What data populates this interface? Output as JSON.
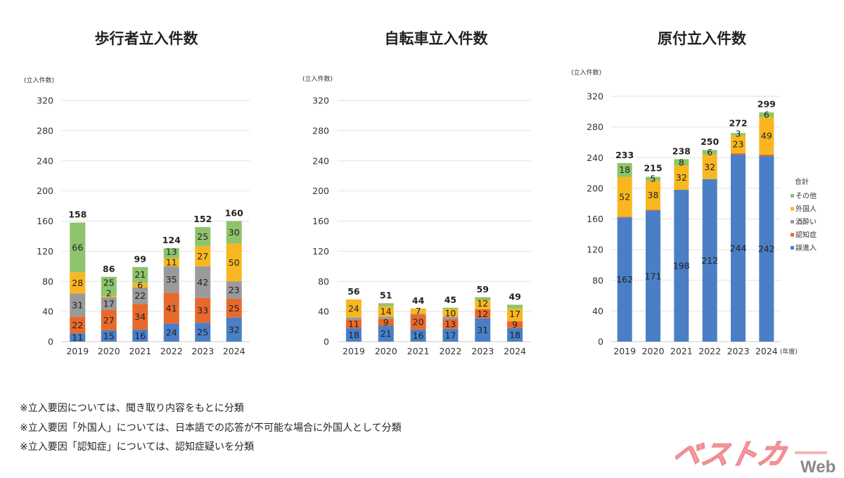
{
  "colors": {
    "誤進入": "#4a7fc6",
    "認知症": "#e8692c",
    "酒酔い": "#9a9a9a",
    "外国人": "#f8b720",
    "その他": "#8dc46c"
  },
  "chart_data": [
    {
      "type": "bar",
      "stacked": true,
      "title": "歩行者立入件数",
      "ylabel": "(立入件数)",
      "ylim": [
        0,
        320
      ],
      "yticks": [
        0,
        40,
        80,
        120,
        160,
        200,
        240,
        280,
        320
      ],
      "grid": true,
      "categories": [
        "2019",
        "2020",
        "2021",
        "2022",
        "2023",
        "2024"
      ],
      "x_suffix": "",
      "totals": [
        158,
        86,
        99,
        124,
        152,
        160
      ],
      "series": [
        {
          "name": "誤進入",
          "values": [
            11,
            15,
            16,
            24,
            25,
            32
          ],
          "labels": [
            11,
            15,
            16,
            24,
            25,
            32
          ]
        },
        {
          "name": "認知症",
          "values": [
            22,
            27,
            34,
            41,
            33,
            25
          ],
          "labels": [
            22,
            27,
            34,
            41,
            33,
            25
          ]
        },
        {
          "name": "酒酔い",
          "values": [
            31,
            17,
            22,
            35,
            42,
            23
          ],
          "labels": [
            31,
            17,
            22,
            35,
            42,
            23
          ]
        },
        {
          "name": "外国人",
          "values": [
            28,
            2,
            6,
            11,
            27,
            50
          ],
          "labels": [
            28,
            2,
            6,
            11,
            27,
            50
          ]
        },
        {
          "name": "その他",
          "values": [
            66,
            25,
            21,
            13,
            25,
            30
          ],
          "labels": [
            66,
            25,
            21,
            13,
            25,
            30
          ]
        }
      ]
    },
    {
      "type": "bar",
      "stacked": true,
      "title": "自転車立入件数",
      "ylabel": "(立入件数)",
      "ylim": [
        0,
        320
      ],
      "yticks": [
        0,
        40,
        80,
        120,
        160,
        200,
        240,
        280,
        320
      ],
      "grid": true,
      "categories": [
        "2019",
        "2020",
        "2021",
        "2022",
        "2023",
        "2024"
      ],
      "x_suffix": "",
      "totals": [
        56,
        51,
        44,
        45,
        59,
        49
      ],
      "series": [
        {
          "name": "誤進入",
          "values": [
            18,
            21,
            16,
            17,
            31,
            18
          ],
          "labels": [
            18,
            21,
            16,
            17,
            31,
            18
          ]
        },
        {
          "name": "認知症",
          "values": [
            11,
            9,
            20,
            13,
            12,
            9
          ],
          "labels": [
            11,
            9,
            20,
            13,
            12,
            9
          ]
        },
        {
          "name": "酒酔い",
          "values": [
            3,
            3,
            1,
            3,
            0,
            0
          ],
          "labels": [
            null,
            null,
            null,
            null,
            null,
            null
          ]
        },
        {
          "name": "外国人",
          "values": [
            24,
            14,
            7,
            10,
            12,
            17
          ],
          "labels": [
            24,
            14,
            7,
            10,
            12,
            17
          ]
        },
        {
          "name": "その他",
          "values": [
            0,
            4,
            0,
            2,
            4,
            5
          ],
          "labels": [
            null,
            null,
            null,
            null,
            null,
            null
          ]
        }
      ]
    },
    {
      "type": "bar",
      "stacked": true,
      "title": "原付立入件数",
      "ylabel": "(立入件数)",
      "ylim": [
        0,
        320
      ],
      "yticks": [
        0,
        40,
        80,
        120,
        160,
        200,
        240,
        280,
        320
      ],
      "grid": true,
      "categories": [
        "2019",
        "2020",
        "2021",
        "2022",
        "2023",
        "2024"
      ],
      "x_suffix": "(年度)",
      "totals": [
        233,
        215,
        238,
        250,
        272,
        299
      ],
      "legend": {
        "title": "合計",
        "position": "right",
        "items": [
          "その他",
          "外国人",
          "酒酔い",
          "認知症",
          "誤進入"
        ]
      },
      "series": [
        {
          "name": "誤進入",
          "values": [
            162,
            171,
            198,
            212,
            244,
            242
          ],
          "labels": [
            162,
            171,
            198,
            212,
            244,
            242
          ]
        },
        {
          "name": "認知症",
          "values": [
            1,
            1,
            0,
            0,
            2,
            2
          ],
          "labels": [
            null,
            null,
            null,
            null,
            null,
            null
          ]
        },
        {
          "name": "酒酔い",
          "values": [
            0,
            0,
            0,
            0,
            0,
            0
          ],
          "labels": [
            null,
            null,
            null,
            null,
            null,
            null
          ]
        },
        {
          "name": "外国人",
          "values": [
            52,
            38,
            32,
            32,
            23,
            49
          ],
          "labels": [
            52,
            38,
            32,
            32,
            23,
            49
          ]
        },
        {
          "name": "その他",
          "values": [
            18,
            5,
            8,
            6,
            3,
            6
          ],
          "labels": [
            18,
            5,
            8,
            6,
            3,
            6
          ]
        }
      ]
    }
  ],
  "notes": [
    "※立入要因については、聞き取り内容をもとに分類",
    "※立入要因「外国人」については、日本語での応答が不可能な場合に外国人として分類",
    "※立入要因「認知症」については、認知症疑いを分類"
  ],
  "logo": {
    "text": "ベストカー",
    "suffix": "Web"
  }
}
